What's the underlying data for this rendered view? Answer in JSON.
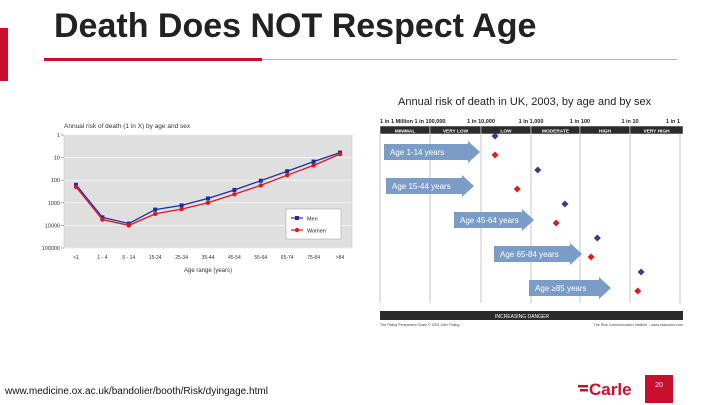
{
  "slide": {
    "title": "Death Does NOT Respect Age",
    "source_url": "www.medicine.ox.ac.uk/bandolier/booth/Risk/dyingage.html",
    "page_number": "20",
    "logo_text": "Carle",
    "colors": {
      "accent": "#c8102e",
      "men": "#1e2aa8",
      "women": "#e0161b",
      "arrow": "#7a9cc6"
    }
  },
  "chart_data": [
    {
      "type": "line",
      "title": "Annual risk of death (1 in X) by age and sex",
      "xlabel": "Age range (years)",
      "ylabel": "",
      "y_scale": "log",
      "y_reversed": true,
      "y_ticks": [
        "1",
        "10",
        "100",
        "1000",
        "10000",
        "100000"
      ],
      "ylim": [
        1,
        100000
      ],
      "grid": true,
      "legend": "bottom-right",
      "categories": [
        "<1",
        "1 - 4",
        "5 - 14",
        "15-24",
        "25-34",
        "35-44",
        "45-54",
        "55-64",
        "65-74",
        "75-84",
        ">84"
      ],
      "series": [
        {
          "name": "Men",
          "values": [
            160,
            4400,
            8300,
            2000,
            1300,
            640,
            270,
            105,
            40,
            15,
            6
          ]
        },
        {
          "name": "Women",
          "values": [
            200,
            5500,
            10000,
            3100,
            1900,
            1000,
            420,
            170,
            60,
            22,
            7
          ]
        }
      ]
    },
    {
      "type": "scatter",
      "title": "Annual risk of death in UK, 2003, by age and by sex",
      "scale_ticks": [
        "1 in 1 Million",
        "1 in 100,000",
        "1 in 10,000",
        "1 in 1,000",
        "1 in 100",
        "1 in 10",
        "1 in 1"
      ],
      "categories_band": [
        "MINIMAL",
        "VERY LOW",
        "LOW",
        "MODERATE",
        "HIGH",
        "VERY HIGH"
      ],
      "groups": [
        {
          "label": "Age 1-14 years",
          "men": 5000,
          "women": 5000
        },
        {
          "label": "Age 15-44 years",
          "men": 700,
          "women": 1800
        },
        {
          "label": "Age 45-64 years",
          "men": 200,
          "women": 300
        },
        {
          "label": "Age 65-84 years",
          "men": 45,
          "women": 60
        },
        {
          "label": "Age ≥85 years",
          "men": 6,
          "women": 7
        }
      ],
      "footer_left": "INCREASING DANGER",
      "credit_left": "The Paling Perspective Scale © 2001 John Paling",
      "credit_right": "The Risk Communication Institute – www.riskcomm.com"
    }
  ]
}
